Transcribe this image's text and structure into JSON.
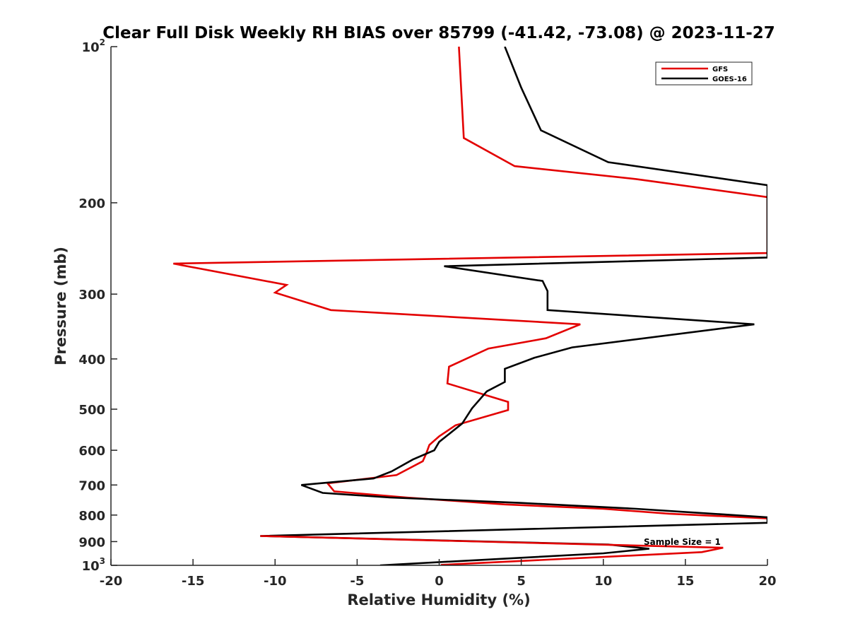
{
  "chart_data": {
    "type": "line",
    "title": "Clear Full Disk Weekly RH BIAS over 85799 (-41.42, -73.08) @ 2023-11-27",
    "xlabel": "Relative Humidity (%)",
    "ylabel": "Pressure (mb)",
    "xlim": [
      -20,
      20
    ],
    "ylim": [
      100,
      1000
    ],
    "y_scale": "log",
    "y_reversed": true,
    "x_ticks": [
      "-20",
      "-15",
      "-10",
      "-5",
      "0",
      "5",
      "10",
      "15",
      "20"
    ],
    "y_ticks": [
      {
        "value": 100,
        "base": "10",
        "exp": "2"
      },
      {
        "value": 200,
        "label": "200"
      },
      {
        "value": 300,
        "label": "300"
      },
      {
        "value": 400,
        "label": "400"
      },
      {
        "value": 500,
        "label": "500"
      },
      {
        "value": 600,
        "label": "600"
      },
      {
        "value": 700,
        "label": "700"
      },
      {
        "value": 800,
        "label": "800"
      },
      {
        "value": 900,
        "label": "900"
      },
      {
        "value": 1000,
        "base": "10",
        "exp": "3"
      }
    ],
    "grid": false,
    "legend_position": "top-right",
    "annotation": "Sample Size = 1",
    "series": [
      {
        "name": "GFS",
        "color": "#e30000",
        "points": [
          [
            1.2,
            100
          ],
          [
            1.5,
            150
          ],
          [
            4.6,
            170
          ],
          [
            12.0,
            180
          ],
          [
            20,
            195
          ],
          [
            20,
            250
          ],
          [
            -16.2,
            262
          ],
          [
            -9.3,
            288
          ],
          [
            -10.0,
            298
          ],
          [
            -6.6,
            322
          ],
          [
            8.6,
            343
          ],
          [
            6.5,
            365
          ],
          [
            3.0,
            382
          ],
          [
            0.6,
            414
          ],
          [
            0.5,
            446
          ],
          [
            4.2,
            484
          ],
          [
            4.2,
            502
          ],
          [
            1.0,
            537
          ],
          [
            0.0,
            564
          ],
          [
            -0.6,
            586
          ],
          [
            -0.8,
            610
          ],
          [
            -1.0,
            630
          ],
          [
            -2.6,
            670
          ],
          [
            -6.8,
            695
          ],
          [
            -6.4,
            720
          ],
          [
            -2.0,
            740
          ],
          [
            4.0,
            763
          ],
          [
            10.0,
            778
          ],
          [
            14.0,
            795
          ],
          [
            20,
            812
          ]
        ]
      },
      {
        "name": "GOES-16",
        "color": "#000000",
        "points": [
          [
            4.0,
            100
          ],
          [
            5.0,
            120
          ],
          [
            6.2,
            145
          ],
          [
            10.3,
            167
          ],
          [
            20,
            185
          ],
          [
            20,
            255
          ],
          [
            0.3,
            265
          ],
          [
            6.3,
            283
          ],
          [
            6.6,
            296
          ],
          [
            6.6,
            322
          ],
          [
            19.2,
            343
          ],
          [
            8.1,
            380
          ],
          [
            5.8,
            398
          ],
          [
            4.0,
            418
          ],
          [
            4.0,
            443
          ],
          [
            2.9,
            462
          ],
          [
            2.0,
            498
          ],
          [
            1.4,
            533
          ],
          [
            0.0,
            578
          ],
          [
            -0.3,
            600
          ],
          [
            -1.6,
            625
          ],
          [
            -2.9,
            659
          ],
          [
            -4.0,
            680
          ],
          [
            -8.4,
            700
          ],
          [
            -7.1,
            725
          ],
          [
            -3.0,
            740
          ],
          [
            5.0,
            758
          ],
          [
            12.0,
            778
          ],
          [
            20,
            808
          ],
          [
            20,
            828
          ],
          [
            -10.9,
            878
          ],
          [
            10.3,
            912
          ],
          [
            12.8,
            929
          ],
          [
            10.0,
            948
          ],
          [
            -3.6,
            1000
          ]
        ]
      },
      {
        "name": "",
        "color": "#e30000",
        "points": [
          [
            -10.9,
            878
          ],
          [
            17.3,
            925
          ],
          [
            16.0,
            943
          ],
          [
            0.1,
            998
          ]
        ]
      }
    ]
  }
}
